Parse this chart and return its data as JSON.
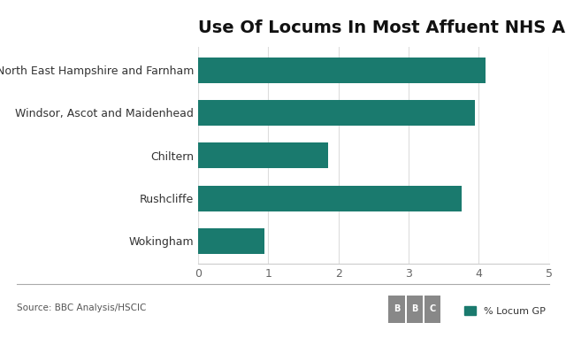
{
  "title": "Use Of Locums In Most Affuent NHS Areas",
  "categories": [
    "North East Hampshire and Farnham",
    "Windsor, Ascot and Maidenhead",
    "Chiltern",
    "Rushcliffe",
    "Wokingham"
  ],
  "values": [
    4.1,
    3.95,
    1.85,
    3.75,
    0.95
  ],
  "bar_color": "#1a7a6e",
  "background_color": "#ffffff",
  "xlim": [
    0,
    5
  ],
  "xticks": [
    0,
    1,
    2,
    3,
    4,
    5
  ],
  "source_text": "Source: BBC Analysis/HSCIC",
  "legend_label": "% Locum GP",
  "title_fontsize": 14,
  "label_fontsize": 9,
  "tick_fontsize": 9
}
